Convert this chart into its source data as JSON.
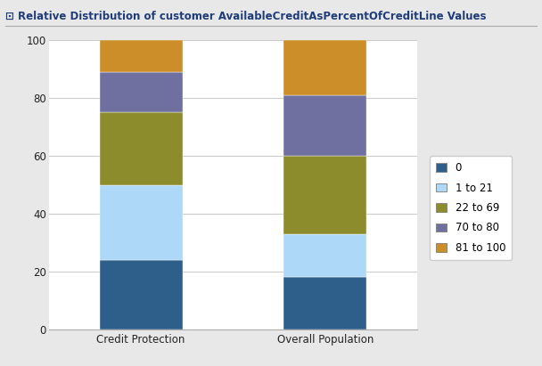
{
  "title": "⊡ Relative Distribution of customer AvailableCreditAsPercentOfCreditLine Values",
  "categories": [
    "Credit Protection",
    "Overall Population"
  ],
  "segments": [
    {
      "label": "0",
      "color": "#2e5f8a",
      "values": [
        24,
        18
      ]
    },
    {
      "label": "1 to 21",
      "color": "#add8f7",
      "values": [
        26,
        15
      ]
    },
    {
      "label": "22 to 69",
      "color": "#8c8c2c",
      "values": [
        25,
        27
      ]
    },
    {
      "label": "70 to 80",
      "color": "#7070a0",
      "values": [
        14,
        21
      ]
    },
    {
      "label": "81 to 100",
      "color": "#cc8e28",
      "values": [
        11,
        19
      ]
    }
  ],
  "ylim": [
    0,
    100
  ],
  "yticks": [
    0,
    20,
    40,
    60,
    80,
    100
  ],
  "background_color": "#e8e8e8",
  "plot_bg_color": "#ffffff",
  "title_color": "#1f3c7a",
  "title_fontsize": 8.5,
  "bar_width": 0.45,
  "figsize": [
    6.08,
    4.11
  ],
  "dpi": 100
}
